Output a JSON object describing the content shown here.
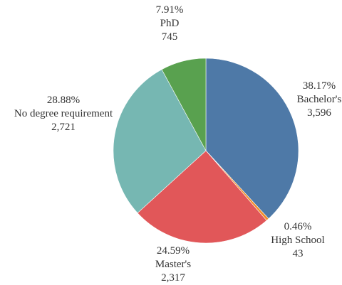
{
  "chart_data": {
    "type": "pie",
    "title": "",
    "slices": [
      {
        "name": "Bachelor's",
        "percent_label": "38.17%",
        "count_label": "3,596",
        "value": 3596,
        "color": "#4e79a7"
      },
      {
        "name": "High School",
        "percent_label": "0.46%",
        "count_label": "43",
        "value": 43,
        "color": "#f28e2b"
      },
      {
        "name": "Master's",
        "percent_label": "24.59%",
        "count_label": "2,317",
        "value": 2317,
        "color": "#e15759"
      },
      {
        "name": "No degree requirement",
        "percent_label": "28.88%",
        "count_label": "2,721",
        "value": 2721,
        "color": "#76b7b2"
      },
      {
        "name": "PhD",
        "percent_label": "7.91%",
        "count_label": "745",
        "value": 745,
        "color": "#59a14f"
      }
    ]
  }
}
